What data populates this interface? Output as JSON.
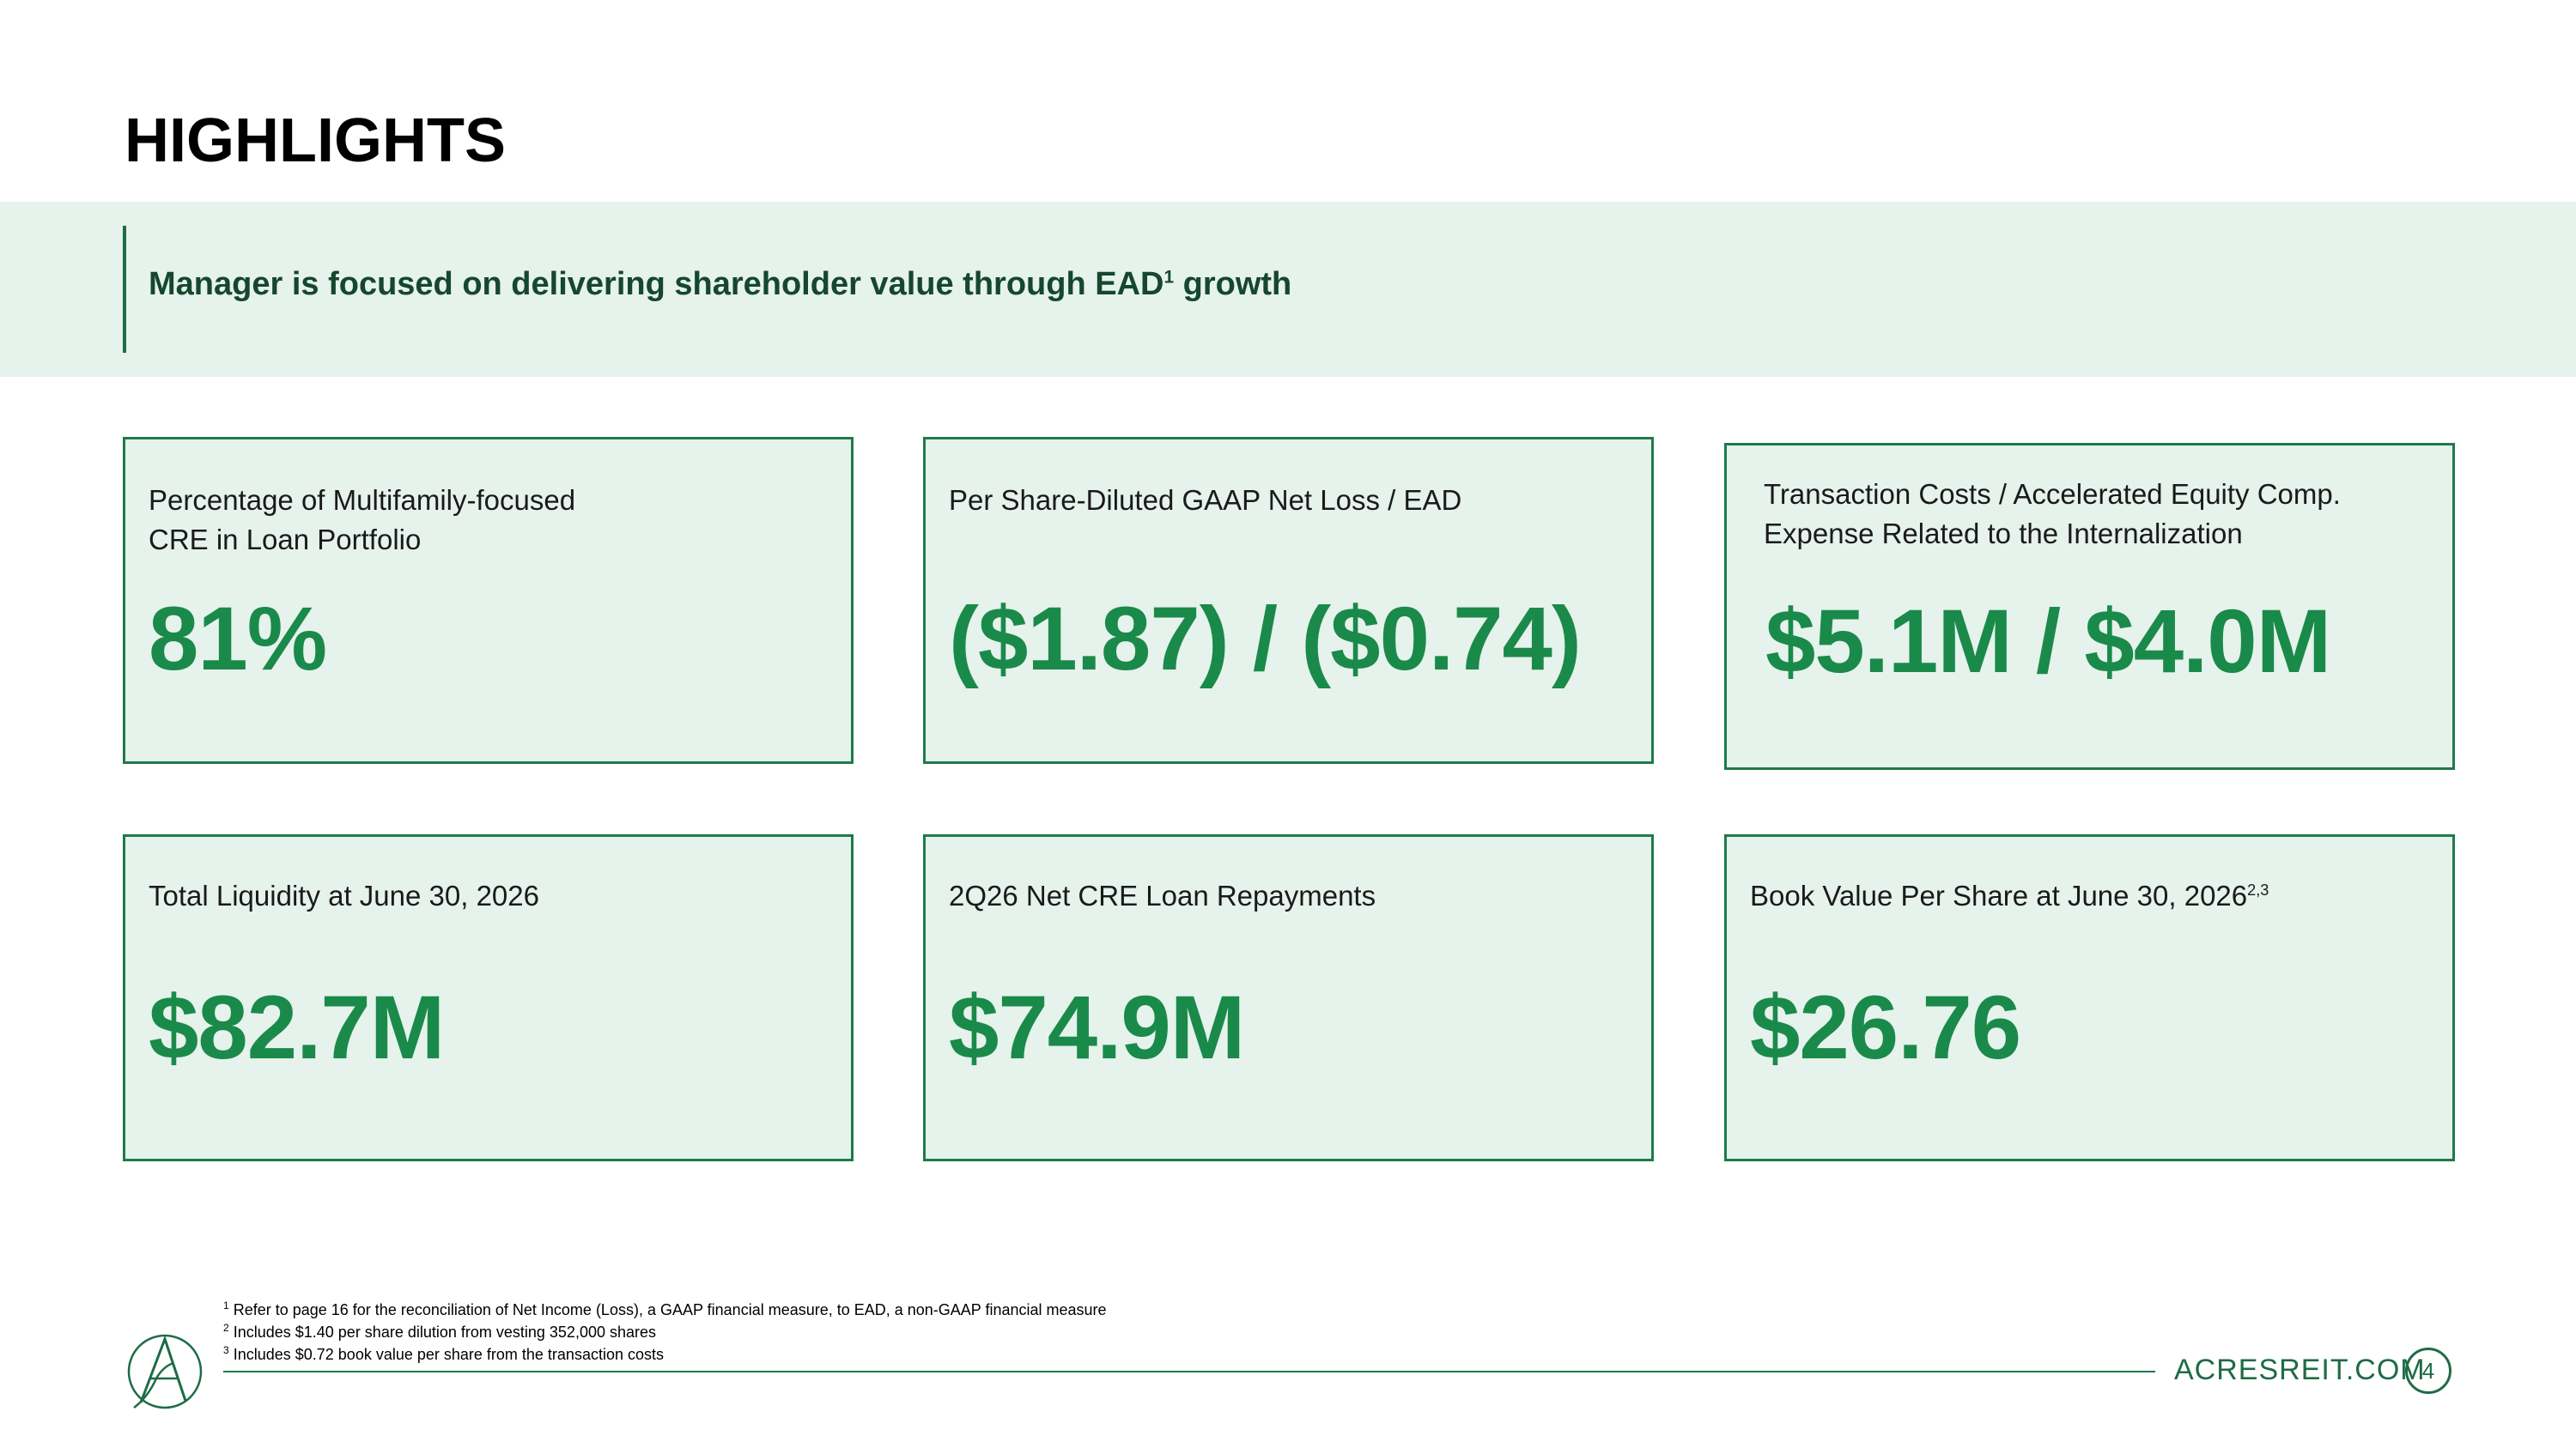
{
  "page": {
    "title": "HIGHLIGHTS"
  },
  "banner": {
    "text_main": "Manager is focused on delivering shareholder value through EAD",
    "text_sup": "1",
    "text_tail": " growth"
  },
  "cards": [
    {
      "label": "Percentage of Multifamily-focused\nCRE in Loan Portfolio",
      "value": "81%"
    },
    {
      "label": "Per Share-Diluted GAAP Net Loss / EAD",
      "value": "($1.87) / ($0.74)"
    },
    {
      "label": "Transaction Costs / Accelerated Equity Comp.\nExpense Related to the Internalization",
      "value": "$5.1M / $4.0M"
    },
    {
      "label": "Total Liquidity at June 30, 2026",
      "value": "$82.7M"
    },
    {
      "label": "2Q26 Net CRE Loan Repayments",
      "value": "$74.9M"
    },
    {
      "label": "Book Value Per Share at June 30, 2026",
      "label_sup": "2,3",
      "value": "$26.76"
    }
  ],
  "footnotes": [
    {
      "marker": "1",
      "text": "Refer to page 16 for the reconciliation of Net Income (Loss), a GAAP financial measure, to EAD, a non-GAAP financial measure"
    },
    {
      "marker": "2",
      "text": "Includes $1.40 per share dilution from vesting 352,000 shares"
    },
    {
      "marker": "3",
      "text": "Includes $0.72 book value per share from the transaction costs"
    }
  ],
  "footer": {
    "url": "ACRESREIT.COM",
    "page_number": "4",
    "logo_icon": "acres-logo-icon"
  },
  "colors": {
    "accent_green": "#1a8a4a",
    "dark_green": "#15472f",
    "panel_bg": "#e6f2ec",
    "border_green": "#1e7a4c"
  }
}
